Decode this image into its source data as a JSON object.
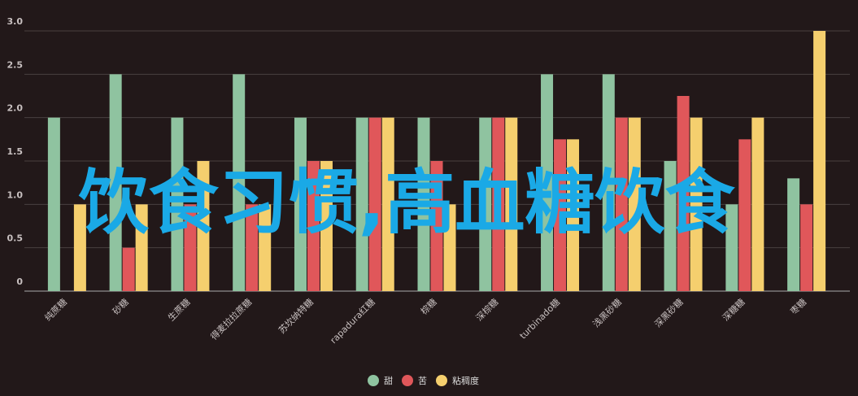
{
  "overlay_text": "饮食习惯,高血糖饮食",
  "chart_data": {
    "type": "bar",
    "categories": [
      "纯蔗糖",
      "砂糖",
      "生蔗糖",
      "得麦拉拉蔗糖",
      "苏坎纳特糖",
      "rapadura红糖",
      "棕糖",
      "深棕糖",
      "turbinado糖",
      "浅黑砂糖",
      "深黑砂糖",
      "深糖糖",
      "枣糖"
    ],
    "series": [
      {
        "name": "甜",
        "color": "#8fc3a0",
        "values": [
          2,
          2.5,
          2,
          2.5,
          2,
          2,
          2,
          2,
          2.5,
          2.5,
          1.5,
          1,
          1.3
        ]
      },
      {
        "name": "苦",
        "color": "#e0575a",
        "values": [
          0,
          0.5,
          1,
          1,
          1.5,
          2,
          1.5,
          2,
          1.75,
          2,
          2.25,
          1.75,
          1
        ]
      },
      {
        "name": "粘稠度",
        "color": "#f5cf6e",
        "values": [
          1,
          1,
          1.5,
          1,
          1.5,
          2,
          1,
          2,
          1.75,
          2,
          2,
          2,
          3
        ]
      }
    ],
    "ylim": [
      0,
      3
    ],
    "yticks": [
      0,
      {
        "value": 0.5,
        "label": "0.5"
      },
      {
        "value": 1,
        "label": "1.0"
      },
      {
        "value": 1.5,
        "label": "1.5"
      },
      {
        "value": 2,
        "label": "2.0"
      },
      {
        "value": 2.5,
        "label": "2.5"
      },
      {
        "value": 3,
        "label": "3.0"
      }
    ],
    "grid": true,
    "legend": "bottom"
  }
}
